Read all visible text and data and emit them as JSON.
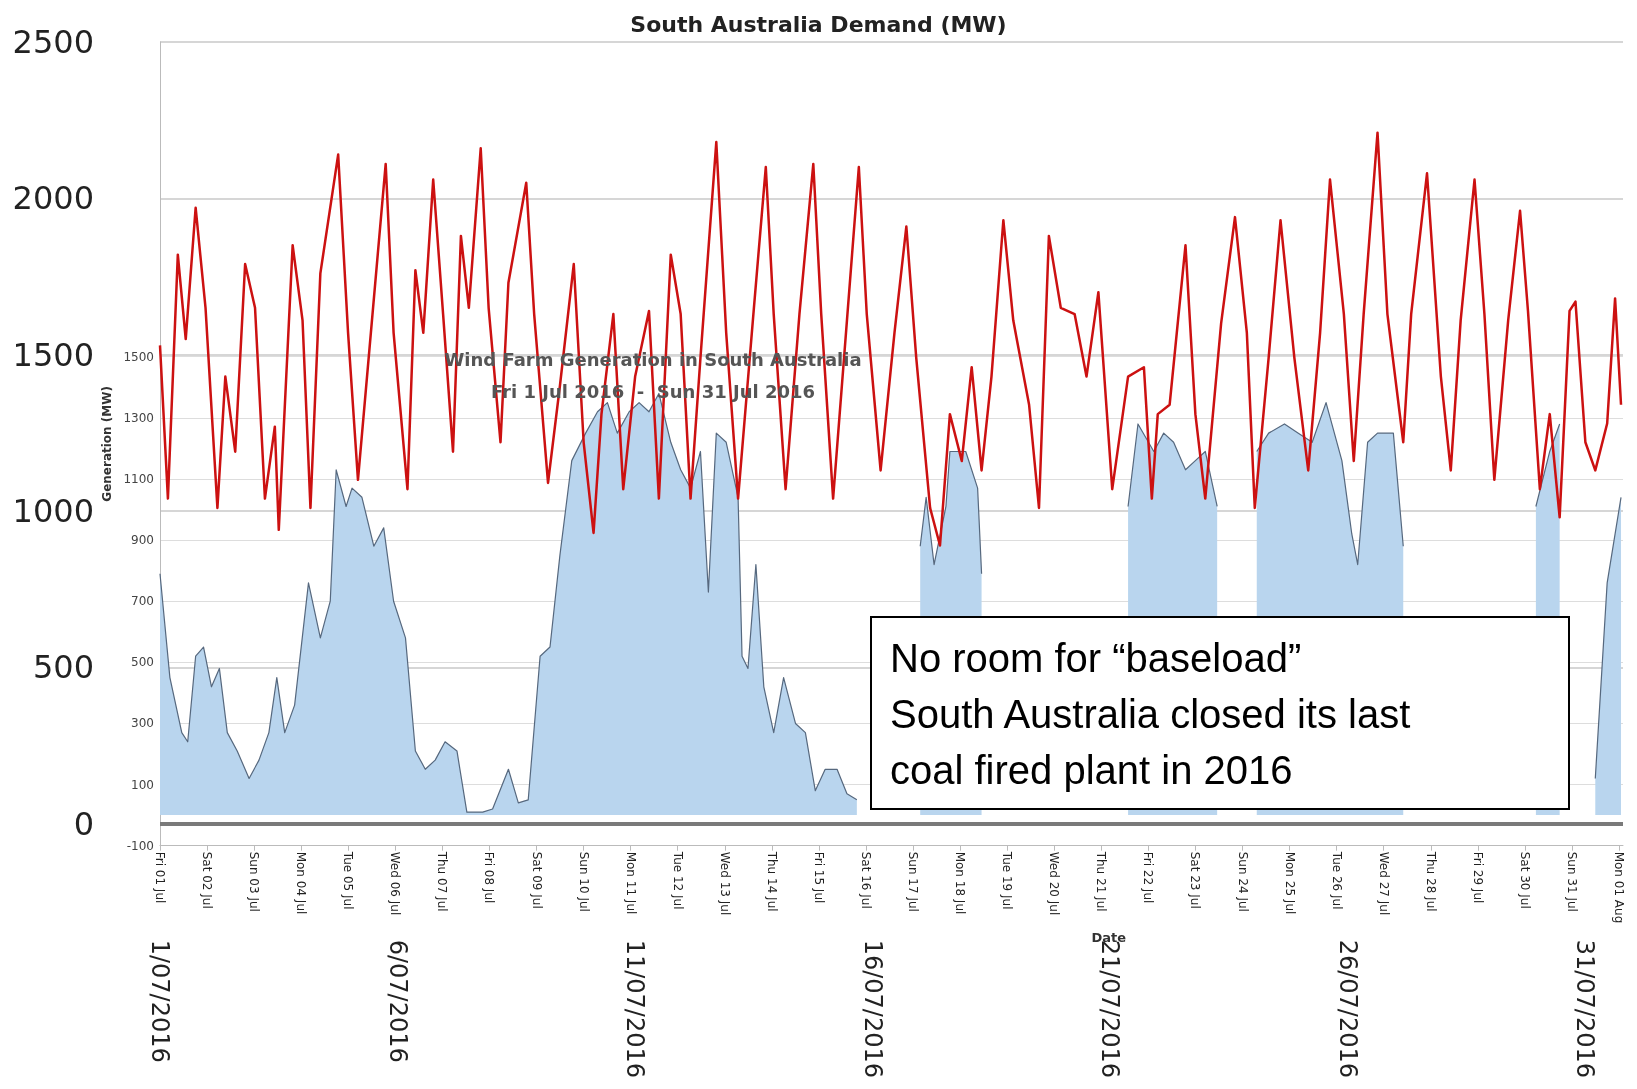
{
  "chart_data": {
    "type": "line",
    "title": "South Australia Demand (MW)",
    "subtitle": "Wind Farm Generation in South Australia\nFri 1 Jul 2016  -  Sun 31 Jul 2016",
    "y2label": "Generation (MW)",
    "x2label": "Date",
    "annotations": [
      "No room for “baseload”\nSouth Australia closed its last\ncoal fired plant in 2016"
    ],
    "xlim": [
      "2016-07-01T00:00",
      "2016-07-31T19:00"
    ],
    "xticks": [
      {
        "value": "2016-07-01",
        "label": "1/07/2016"
      },
      {
        "value": "2016-07-06",
        "label": "6/07/2016"
      },
      {
        "value": "2016-07-11",
        "label": "11/07/2016"
      },
      {
        "value": "2016-07-16",
        "label": "16/07/2016"
      },
      {
        "value": "2016-07-21",
        "label": "21/07/2016"
      },
      {
        "value": "2016-07-26",
        "label": "26/07/2016"
      },
      {
        "value": "2016-07-31",
        "label": "31/07/2016"
      }
    ],
    "x2lim": [
      "2016-07-01T00:00",
      "2016-08-01T02:00"
    ],
    "x2ticks": [
      {
        "value": "2016-07-01",
        "label": "Fri 01 Jul"
      },
      {
        "value": "2016-07-02",
        "label": "Sat 02 Jul"
      },
      {
        "value": "2016-07-03",
        "label": "Sun 03 Jul"
      },
      {
        "value": "2016-07-04",
        "label": "Mon 04 Jul"
      },
      {
        "value": "2016-07-05",
        "label": "Tue 05 Jul"
      },
      {
        "value": "2016-07-06",
        "label": "Wed 06 Jul"
      },
      {
        "value": "2016-07-07",
        "label": "Thu 07 Jul"
      },
      {
        "value": "2016-07-08",
        "label": "Fri 08 Jul"
      },
      {
        "value": "2016-07-09",
        "label": "Sat 09 Jul"
      },
      {
        "value": "2016-07-10",
        "label": "Sun 10 Jul"
      },
      {
        "value": "2016-07-11",
        "label": "Mon 11 Jul"
      },
      {
        "value": "2016-07-12",
        "label": "Tue 12 Jul"
      },
      {
        "value": "2016-07-13",
        "label": "Wed 13 Jul"
      },
      {
        "value": "2016-07-14",
        "label": "Thu 14 Jul"
      },
      {
        "value": "2016-07-15",
        "label": "Fri 15 Jul"
      },
      {
        "value": "2016-07-16",
        "label": "Sat 16 Jul"
      },
      {
        "value": "2016-07-17",
        "label": "Sun 17 Jul"
      },
      {
        "value": "2016-07-18",
        "label": "Mon 18 Jul"
      },
      {
        "value": "2016-07-19",
        "label": "Tue 19 Jul"
      },
      {
        "value": "2016-07-20",
        "label": "Wed 20 Jul"
      },
      {
        "value": "2016-07-21",
        "label": "Thu 21 Jul"
      },
      {
        "value": "2016-07-22",
        "label": "Fri 22 Jul"
      },
      {
        "value": "2016-07-23",
        "label": "Sat 23 Jul"
      },
      {
        "value": "2016-07-24",
        "label": "Sun 24 Jul"
      },
      {
        "value": "2016-07-25",
        "label": "Mon 25 Jul"
      },
      {
        "value": "2016-07-26",
        "label": "Tue 26 Jul"
      },
      {
        "value": "2016-07-27",
        "label": "Wed 27 Jul"
      },
      {
        "value": "2016-07-28",
        "label": "Thu 28 Jul"
      },
      {
        "value": "2016-07-29",
        "label": "Fri 29 Jul"
      },
      {
        "value": "2016-07-30",
        "label": "Sat 30 Jul"
      },
      {
        "value": "2016-07-31",
        "label": "Sun 31 Jul"
      },
      {
        "value": "2016-08-01",
        "label": "Mon 01 Aug"
      }
    ],
    "ylim": [
      -70,
      2500
    ],
    "yticks": [
      0,
      500,
      1000,
      1500,
      2000,
      2500
    ],
    "y2lim": [
      -100,
      2530
    ],
    "y2ticks": [
      -100,
      100,
      300,
      500,
      700,
      900,
      1100,
      1300,
      1500
    ],
    "grid": "y",
    "marker": "none",
    "ref_lines": [
      {
        "axis": "y",
        "value": 0,
        "color": "#7a7a7a"
      }
    ],
    "series": [
      {
        "type": "area",
        "axis": "y2",
        "color": "#b9d5ee",
        "x": [
          "2016-07-01T00:00",
          "2016-07-01T05:00",
          "2016-07-01T11:00",
          "2016-07-01T14:00",
          "2016-07-01T18:00",
          "2016-07-01T22:00",
          "2016-07-02T02:00",
          "2016-07-02T06:00",
          "2016-07-02T10:00",
          "2016-07-02T15:00",
          "2016-07-02T21:00",
          "2016-07-03T02:00",
          "2016-07-03T07:00",
          "2016-07-03T11:00",
          "2016-07-03T15:00",
          "2016-07-03T20:00",
          "2016-07-04T03:00",
          "2016-07-04T09:00",
          "2016-07-04T14:00",
          "2016-07-04T17:00",
          "2016-07-04T22:00",
          "2016-07-05T01:00",
          "2016-07-05T06:00",
          "2016-07-05T12:00",
          "2016-07-05T17:00",
          "2016-07-05T22:00",
          "2016-07-06T04:00",
          "2016-07-06T09:00",
          "2016-07-06T14:00",
          "2016-07-06T19:00",
          "2016-07-07T00:00",
          "2016-07-07T06:00",
          "2016-07-07T11:00",
          "2016-07-07T19:00",
          "2016-07-08T00:00",
          "2016-07-08T08:00",
          "2016-07-08T13:00",
          "2016-07-08T18:00",
          "2016-07-09T00:00",
          "2016-07-09T05:00",
          "2016-07-09T10:00",
          "2016-07-09T16:00",
          "2016-07-09T23:00",
          "2016-07-10T05:00",
          "2016-07-10T10:00",
          "2016-07-10T15:00",
          "2016-07-10T21:00",
          "2016-07-11T02:00",
          "2016-07-11T07:00",
          "2016-07-11T12:00",
          "2016-07-11T18:00",
          "2016-07-11T23:00",
          "2016-07-12T04:00",
          "2016-07-12T09:00",
          "2016-07-12T13:00",
          "2016-07-12T17:00",
          "2016-07-12T22:00",
          "2016-07-13T04:00",
          "2016-07-13T06:00",
          "2016-07-13T09:00",
          "2016-07-13T13:00",
          "2016-07-13T17:00",
          "2016-07-13T22:00",
          "2016-07-14T03:00",
          "2016-07-14T09:00",
          "2016-07-14T14:00",
          "2016-07-14T19:00",
          "2016-07-15T00:00",
          "2016-07-15T06:00",
          "2016-07-15T11:00",
          "2016-07-15T16:00",
          "2016-07-15T21:00",
          "2016-07-16T03:00",
          "2016-07-16T08:00",
          "2016-07-16T13:00",
          "2016-07-16T18:00",
          "2016-07-17T00:00",
          "2016-07-17T03:00",
          "2016-07-17T07:00",
          "2016-07-17T13:00",
          "2016-07-17T15:00",
          "2016-07-17T23:00",
          "2016-07-18T05:00",
          "2016-07-18T07:00",
          "2016-07-18T12:00",
          "2016-07-18T18:00",
          "2016-07-18T23:00",
          "2016-07-19T04:00",
          "2016-07-19T10:00",
          "2016-07-19T15:00",
          "2016-07-19T18:00",
          "2016-07-19T23:00",
          "2016-07-20T06:00",
          "2016-07-20T12:00",
          "2016-07-20T20:00",
          "2016-07-21T04:00",
          "2016-07-21T09:00",
          "2016-07-21T14:00",
          "2016-07-21T22:00",
          "2016-07-22T03:00",
          "2016-07-22T08:00",
          "2016-07-22T14:00",
          "2016-07-22T19:00",
          "2016-07-23T00:00",
          "2016-07-23T06:00",
          "2016-07-23T13:00",
          "2016-07-23T17:00",
          "2016-07-23T21:00",
          "2016-07-24T02:00",
          "2016-07-24T08:00",
          "2016-07-24T16:00",
          "2016-07-24T23:00",
          "2016-07-25T06:00",
          "2016-07-25T13:00",
          "2016-07-25T21:00",
          "2016-07-26T02:00",
          "2016-07-26T05:00",
          "2016-07-26T10:00",
          "2016-07-26T15:00",
          "2016-07-26T23:00",
          "2016-07-27T04:00",
          "2016-07-27T19:00",
          "2016-07-29T14:00",
          "2016-07-29T19:00",
          "2016-07-29T23:00",
          "2016-07-30T06:00",
          "2016-07-30T11:00",
          "2016-07-30T19:00",
          "2016-07-31T00:00",
          "2016-07-31T05:00",
          "2016-07-31T11:00",
          "2016-07-31T18:00"
        ],
        "values": [
          790,
          450,
          270,
          240,
          520,
          550,
          420,
          480,
          270,
          210,
          120,
          180,
          270,
          450,
          270,
          360,
          760,
          580,
          700,
          1130,
          1010,
          1070,
          1040,
          880,
          940,
          700,
          580,
          210,
          150,
          180,
          240,
          210,
          10,
          10,
          20,
          150,
          40,
          50,
          520,
          550,
          850,
          1160,
          1250,
          1320,
          1350,
          1250,
          1320,
          1350,
          1320,
          1380,
          1220,
          1130,
          1070,
          1190,
          730,
          1250,
          1220,
          1040,
          520,
          480,
          820,
          420,
          270,
          450,
          300,
          270,
          80,
          150,
          150,
          70,
          50,
          null,
          null,
          null,
          null,
          null,
          880,
          1040,
          820,
          1010,
          1190,
          1190,
          1070,
          790,
          null,
          null,
          null,
          null,
          null,
          null,
          null,
          null,
          null,
          null,
          null,
          null,
          1010,
          1280,
          1190,
          1250,
          1220,
          1130,
          1160,
          1190,
          1010,
          null,
          null,
          null,
          1190,
          1250,
          1280,
          1250,
          1220,
          1350,
          1160,
          920,
          820,
          1220,
          1250,
          1250,
          880,
          null,
          null,
          null,
          1010,
          1190,
          1280,
          null,
          null,
          120,
          760,
          1040
        ]
      },
      {
        "color": "#cc1111",
        "x": [
          "2016-07-01T00:00",
          "2016-07-01T04:00",
          "2016-07-01T09:00",
          "2016-07-01T13:00",
          "2016-07-01T18:00",
          "2016-07-01T23:00",
          "2016-07-02T05:00",
          "2016-07-02T09:00",
          "2016-07-02T14:00",
          "2016-07-02T19:00",
          "2016-07-03T00:00",
          "2016-07-03T05:00",
          "2016-07-03T10:00",
          "2016-07-03T12:00",
          "2016-07-03T19:00",
          "2016-07-04T00:00",
          "2016-07-04T04:00",
          "2016-07-04T09:00",
          "2016-07-04T18:00",
          "2016-07-04T23:00",
          "2016-07-05T04:00",
          "2016-07-05T18:00",
          "2016-07-05T22:00",
          "2016-07-06T05:00",
          "2016-07-06T09:00",
          "2016-07-06T13:00",
          "2016-07-06T18:00",
          "2016-07-06T23:00",
          "2016-07-07T04:00",
          "2016-07-07T08:00",
          "2016-07-07T12:00",
          "2016-07-07T18:00",
          "2016-07-07T22:00",
          "2016-07-08T04:00",
          "2016-07-08T08:00",
          "2016-07-08T17:00",
          "2016-07-08T21:00",
          "2016-07-09T04:00",
          "2016-07-09T10:00",
          "2016-07-09T17:00",
          "2016-07-09T22:00",
          "2016-07-10T03:00",
          "2016-07-10T07:00",
          "2016-07-10T13:00",
          "2016-07-10T18:00",
          "2016-07-11T00:00",
          "2016-07-11T07:00",
          "2016-07-11T12:00",
          "2016-07-11T18:00",
          "2016-07-11T23:00",
          "2016-07-12T04:00",
          "2016-07-12T09:00",
          "2016-07-12T17:00",
          "2016-07-12T22:00",
          "2016-07-13T04:00",
          "2016-07-13T12:00",
          "2016-07-13T18:00",
          "2016-07-13T22:00",
          "2016-07-14T04:00",
          "2016-07-14T11:00",
          "2016-07-14T18:00",
          "2016-07-14T22:00",
          "2016-07-15T04:00",
          "2016-07-15T11:00",
          "2016-07-15T17:00",
          "2016-07-15T21:00",
          "2016-07-16T04:00",
          "2016-07-16T11:00",
          "2016-07-16T17:00",
          "2016-07-16T22:00",
          "2016-07-17T05:00",
          "2016-07-17T10:00",
          "2016-07-17T15:00",
          "2016-07-17T21:00",
          "2016-07-18T02:00",
          "2016-07-18T07:00",
          "2016-07-18T12:00",
          "2016-07-18T18:00",
          "2016-07-18T23:00",
          "2016-07-19T07:00",
          "2016-07-19T12:00",
          "2016-07-19T17:00",
          "2016-07-19T23:00",
          "2016-07-20T06:00",
          "2016-07-20T12:00",
          "2016-07-20T18:00",
          "2016-07-21T01:00",
          "2016-07-21T09:00",
          "2016-07-21T17:00",
          "2016-07-21T21:00",
          "2016-07-22T00:00",
          "2016-07-22T06:00",
          "2016-07-22T14:00",
          "2016-07-22T19:00",
          "2016-07-23T00:00",
          "2016-07-23T08:00",
          "2016-07-23T15:00",
          "2016-07-23T21:00",
          "2016-07-24T01:00",
          "2016-07-24T08:00",
          "2016-07-24T14:00",
          "2016-07-24T21:00",
          "2016-07-25T04:00",
          "2016-07-25T10:00",
          "2016-07-25T15:00",
          "2016-07-25T22:00",
          "2016-07-26T03:00",
          "2016-07-26T08:00",
          "2016-07-26T15:00",
          "2016-07-26T20:00",
          "2016-07-27T04:00",
          "2016-07-27T08:00",
          "2016-07-27T16:00",
          "2016-07-27T23:00",
          "2016-07-28T04:00",
          "2016-07-28T09:00",
          "2016-07-28T16:00",
          "2016-07-28T21:00",
          "2016-07-29T02:00",
          "2016-07-29T09:00",
          "2016-07-29T15:00",
          "2016-07-29T19:00",
          "2016-07-30T01:00",
          "2016-07-30T06:00",
          "2016-07-30T11:00",
          "2016-07-30T16:00",
          "2016-07-30T19:00",
          "2016-07-31T00:00",
          "2016-07-31T05:00",
          "2016-07-31T11:00",
          "2016-07-31T15:00",
          "2016-07-31T18:00"
        ],
        "values": [
          1530,
          1040,
          1820,
          1550,
          1970,
          1650,
          1010,
          1430,
          1190,
          1790,
          1650,
          1040,
          1270,
          940,
          1850,
          1610,
          1010,
          1760,
          2140,
          1570,
          1100,
          2110,
          1570,
          1070,
          1770,
          1570,
          2060,
          1630,
          1190,
          1880,
          1650,
          2160,
          1650,
          1220,
          1730,
          2050,
          1630,
          1090,
          1400,
          1790,
          1220,
          930,
          1310,
          1630,
          1070,
          1430,
          1640,
          1040,
          1820,
          1630,
          1040,
          1490,
          2180,
          1570,
          1040,
          1650,
          2100,
          1630,
          1070,
          1630,
          2110,
          1630,
          1040,
          1610,
          2100,
          1630,
          1130,
          1570,
          1910,
          1490,
          1010,
          890,
          1310,
          1160,
          1460,
          1130,
          1430,
          1930,
          1610,
          1340,
          1010,
          1880,
          1650,
          1630,
          1430,
          1700,
          1070,
          1430,
          1460,
          1040,
          1310,
          1340,
          1850,
          1310,
          1040,
          1600,
          1940,
          1570,
          1010,
          1490,
          1930,
          1490,
          1130,
          1570,
          2060,
          1630,
          1160,
          1630,
          2210,
          1630,
          1220,
          1630,
          2080,
          1430,
          1130,
          1610,
          2060,
          1630,
          1100,
          1610,
          1960,
          1640,
          1070,
          1310,
          980,
          1640,
          1670,
          1220,
          1130,
          1280,
          1680,
          1340
        ]
      }
    ]
  }
}
